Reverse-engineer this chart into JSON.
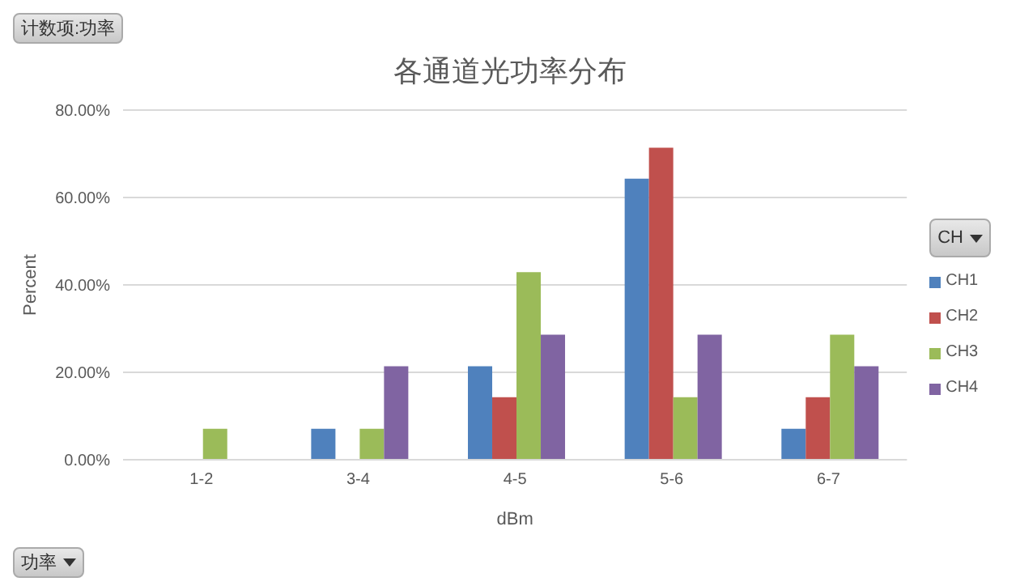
{
  "chart_data": {
    "type": "bar",
    "title": "各通道光功率分布",
    "xlabel": "dBm",
    "ylabel": "Percent",
    "legend_title": "CH",
    "annotations": [
      "计数项:功率",
      "功率"
    ],
    "categories": [
      "1-2",
      "3-4",
      "4-5",
      "5-6",
      "6-7"
    ],
    "series": [
      {
        "name": "CH1",
        "color": "#4f81bd",
        "values": [
          null,
          7.1,
          21.4,
          64.3,
          7.1
        ]
      },
      {
        "name": "CH2",
        "color": "#c0504d",
        "values": [
          null,
          null,
          14.3,
          71.4,
          14.3
        ]
      },
      {
        "name": "CH3",
        "color": "#9bbb59",
        "values": [
          7.1,
          7.1,
          42.9,
          14.3,
          28.6
        ]
      },
      {
        "name": "CH4",
        "color": "#8064a2",
        "values": [
          null,
          21.4,
          28.6,
          28.6,
          21.4
        ]
      }
    ],
    "ylim": [
      0,
      80
    ],
    "yticks": [
      {
        "value": 0,
        "label": "0.00%"
      },
      {
        "value": 20,
        "label": "20.00%"
      },
      {
        "value": 40,
        "label": "40.00%"
      },
      {
        "value": 60,
        "label": "60.00%"
      },
      {
        "value": 80,
        "label": "80.00%"
      }
    ],
    "grid": "y",
    "legend": "right"
  }
}
